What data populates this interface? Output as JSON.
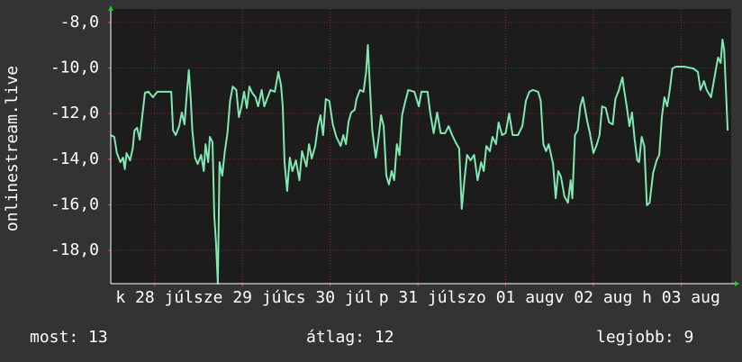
{
  "chart_data": {
    "type": "line",
    "y_label": "onlinestream.live",
    "xlim": [
      0,
      7.07
    ],
    "xticks": [
      {
        "value": 0.5,
        "label": "k 28 júl"
      },
      {
        "value": 1.5,
        "label": "sze 29 júl"
      },
      {
        "value": 2.5,
        "label": "cs 30 júl"
      },
      {
        "value": 3.5,
        "label": "p 31 júl"
      },
      {
        "value": 4.5,
        "label": "szo 01 aug"
      },
      {
        "value": 5.5,
        "label": "v 02 aug"
      },
      {
        "value": 6.5,
        "label": "h 03 aug"
      }
    ],
    "ylim": [
      -19.46,
      -7.41
    ],
    "yticks": [
      {
        "value": -8,
        "label": "-8,0"
      },
      {
        "value": -10,
        "label": "-10,0"
      },
      {
        "value": -12,
        "label": "-12,0"
      },
      {
        "value": -14,
        "label": "-14,0"
      },
      {
        "value": -16,
        "label": "-16,0"
      },
      {
        "value": -18,
        "label": "-18,0"
      }
    ],
    "grid": true,
    "series": [
      {
        "color": "#80e8b0",
        "x": [
          0,
          0.04,
          0.07,
          0.11,
          0.14,
          0.16,
          0.18,
          0.22,
          0.25,
          0.27,
          0.3,
          0.33,
          0.36,
          0.39,
          0.43,
          0.48,
          0.53,
          0.64,
          0.69,
          0.71,
          0.74,
          0.78,
          0.81,
          0.84,
          0.87,
          0.89,
          0.91,
          0.93,
          0.96,
          0.99,
          1.03,
          1.06,
          1.08,
          1.11,
          1.13,
          1.16,
          1.18,
          1.2,
          1.22,
          1.24,
          1.27,
          1.3,
          1.33,
          1.36,
          1.39,
          1.43,
          1.46,
          1.49,
          1.52,
          1.55,
          1.58,
          1.61,
          1.65,
          1.68,
          1.72,
          1.75,
          1.78,
          1.82,
          1.87,
          1.91,
          1.94,
          1.96,
          1.98,
          2.01,
          2.04,
          2.07,
          2.11,
          2.15,
          2.18,
          2.23,
          2.26,
          2.29,
          2.33,
          2.36,
          2.39,
          2.42,
          2.45,
          2.49,
          2.53,
          2.57,
          2.62,
          2.65,
          2.68,
          2.71,
          2.74,
          2.78,
          2.8,
          2.84,
          2.88,
          2.91,
          2.93,
          2.96,
          2.98,
          3.02,
          3.05,
          3.08,
          3.11,
          3.14,
          3.17,
          3.2,
          3.23,
          3.26,
          3.29,
          3.32,
          3.35,
          3.39,
          3.46,
          3.51,
          3.54,
          3.61,
          3.64,
          3.68,
          3.72,
          3.76,
          3.81,
          3.85,
          3.89,
          3.93,
          3.97,
          4.0,
          4.03,
          4.06,
          4.1,
          4.14,
          4.18,
          4.22,
          4.25,
          4.28,
          4.32,
          4.35,
          4.39,
          4.42,
          4.46,
          4.5,
          4.54,
          4.58,
          4.64,
          4.69,
          4.73,
          4.77,
          4.81,
          4.87,
          4.9,
          4.93,
          4.96,
          4.99,
          5.04,
          5.07,
          5.1,
          5.13,
          5.17,
          5.21,
          5.24,
          5.26,
          5.29,
          5.32,
          5.35,
          5.38,
          5.43,
          5.46,
          5.5,
          5.54,
          5.57,
          5.6,
          5.64,
          5.68,
          5.72,
          5.75,
          5.79,
          5.83,
          5.85,
          5.88,
          5.91,
          5.94,
          5.97,
          6.0,
          6.02,
          6.05,
          6.08,
          6.11,
          6.14,
          6.18,
          6.22,
          6.25,
          6.28,
          6.31,
          6.34,
          6.37,
          6.4,
          6.44,
          6.53,
          6.64,
          6.69,
          6.72,
          6.76,
          6.79,
          6.84,
          6.89,
          6.92,
          6.95,
          6.97,
          6.99,
          7.03
        ],
        "values": [
          -12.94,
          -13.02,
          -13.73,
          -14.13,
          -13.93,
          -14.44,
          -13.73,
          -14.05,
          -13.53,
          -12.74,
          -12.62,
          -13.14,
          -12.07,
          -11.08,
          -11.04,
          -11.28,
          -11.04,
          -11.04,
          -11.04,
          -12.74,
          -12.94,
          -12.55,
          -11.95,
          -12.47,
          -10.96,
          -10.09,
          -11.28,
          -12.74,
          -13.93,
          -14.21,
          -13.81,
          -14.52,
          -13.34,
          -14.13,
          -13.02,
          -13.26,
          -16.5,
          -17.68,
          -19.46,
          -14.13,
          -14.72,
          -13.65,
          -12.86,
          -11.44,
          -10.81,
          -10.96,
          -12.15,
          -11.68,
          -11.04,
          -11.75,
          -10.81,
          -11.08,
          -11.28,
          -11.68,
          -10.96,
          -11.68,
          -11.36,
          -10.96,
          -11.04,
          -10.17,
          -10.77,
          -11.68,
          -14.13,
          -15.39,
          -13.93,
          -14.52,
          -14.05,
          -14.92,
          -13.65,
          -14.32,
          -13.34,
          -13.97,
          -13.42,
          -12.55,
          -12.07,
          -12.94,
          -11.36,
          -11.44,
          -12.47,
          -13.02,
          -13.42,
          -12.94,
          -13.34,
          -12.35,
          -11.95,
          -11.83,
          -11.36,
          -10.96,
          -11.04,
          -10.17,
          -8.99,
          -11.36,
          -12.74,
          -13.93,
          -13.14,
          -12.07,
          -12.55,
          -14.72,
          -15.11,
          -14.52,
          -14.92,
          -13.34,
          -13.81,
          -12.07,
          -11.56,
          -10.96,
          -11.04,
          -11.68,
          -11.04,
          -11.04,
          -11.95,
          -12.86,
          -11.95,
          -12.86,
          -12.86,
          -12.55,
          -12.94,
          -13.26,
          -13.53,
          -16.18,
          -14.92,
          -13.81,
          -14.05,
          -13.81,
          -14.92,
          -14.13,
          -14.52,
          -13.42,
          -13.65,
          -13.02,
          -13.34,
          -12.39,
          -12.94,
          -12.86,
          -11.99,
          -12.94,
          -12.94,
          -12.55,
          -11.44,
          -11.04,
          -10.96,
          -11.04,
          -11.44,
          -13.34,
          -13.65,
          -13.34,
          -14.21,
          -15.71,
          -14.52,
          -14.76,
          -15.63,
          -15.91,
          -14.92,
          -15.71,
          -12.94,
          -12.74,
          -11.68,
          -11.28,
          -12.35,
          -12.86,
          -13.73,
          -13.34,
          -12.94,
          -11.68,
          -11.75,
          -12.39,
          -12.47,
          -11.36,
          -10.96,
          -10.41,
          -10.96,
          -11.68,
          -12.55,
          -11.95,
          -13.14,
          -14.05,
          -14.13,
          -13.02,
          -13.42,
          -16.02,
          -15.91,
          -14.6,
          -14.05,
          -13.81,
          -12.15,
          -11.28,
          -11.68,
          -10.96,
          -10.02,
          -9.94,
          -9.94,
          -10.02,
          -10.17,
          -10.96,
          -10.57,
          -10.96,
          -11.28,
          -10.17,
          -9.54,
          -9.78,
          -8.75,
          -9.19,
          -12.74
        ]
      }
    ],
    "stats": [
      "most: 13",
      "átlag: 12",
      "legjobb: 9"
    ]
  }
}
